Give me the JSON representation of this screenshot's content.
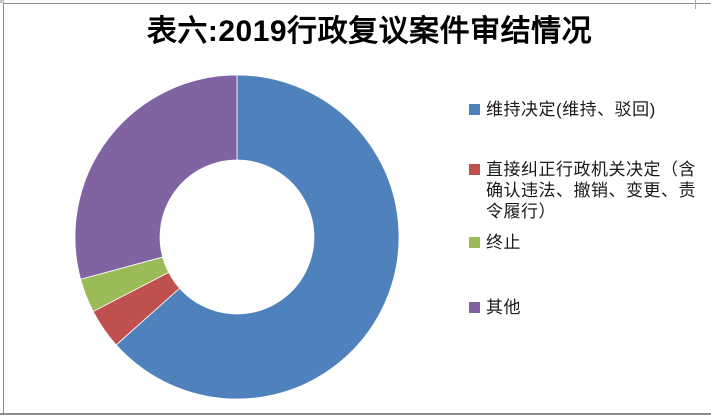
{
  "page": {
    "background": "#FFFFFF",
    "frame_color": "#8C8C8C",
    "corner_stub_color": "#C8C8C8"
  },
  "chart_data": {
    "type": "pie",
    "subtype": "donut",
    "title": "表六:2019行政复议案件审结情况",
    "categories": [
      "维持决定(维持、驳回)",
      "直接纠正行政机关决定（含确认违法、撤销、变更、责令履行）",
      "终止",
      "其他"
    ],
    "values_percent": [
      63.4,
      4.0,
      3.4,
      29.2
    ],
    "colors": [
      "#4F81BD",
      "#C0504D",
      "#9BBB59",
      "#8064A2"
    ],
    "start_angle_deg": 0,
    "direction": "clockwise",
    "donut_hole_ratio": 0.475,
    "legend_position": "right",
    "data_labels_shown": false
  },
  "legend": {
    "items": [
      {
        "label": "维持决定(维持、驳回)",
        "color": "#4F81BD"
      },
      {
        "label": "直接纠正行政机关决定（含确认违法、撤销、变更、责令履行）",
        "color": "#C0504D"
      },
      {
        "label": "终止",
        "color": "#9BBB59"
      },
      {
        "label": "其他",
        "color": "#8064A2"
      }
    ]
  }
}
